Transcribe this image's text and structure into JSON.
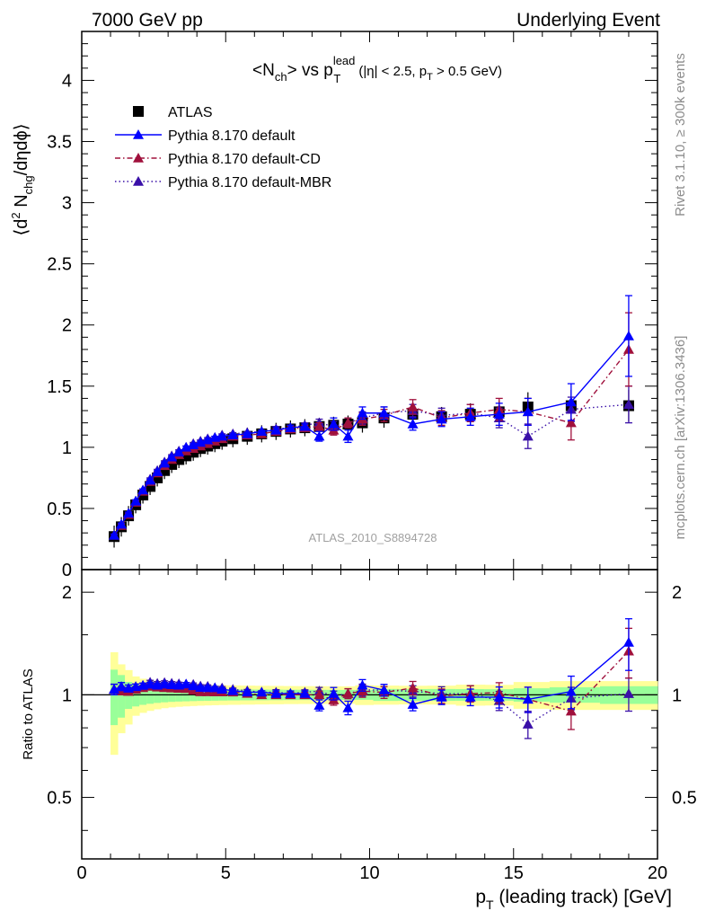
{
  "header": {
    "left": "7000 GeV pp",
    "right": "Underlying Event"
  },
  "side_labels": {
    "top": "Rivet 3.1.10, ≥ 300k events",
    "bottom": "mcplots.cern.ch [arXiv:1306.3436]"
  },
  "watermark": "ATLAS_2010_S8894728",
  "title": {
    "lead": "<N",
    "sub1": "ch",
    "mid": "> vs p",
    "sup": "lead",
    "sub2": "T",
    "cut_open": "(|η| < 2.5, p",
    "cut_sub": "T",
    "cut_close": " > 0.5 GeV)"
  },
  "ylabel": {
    "pre": "⟨d",
    "sup": "2",
    "mid": " N",
    "sub": "chg",
    "post": "/dηdϕ⟩"
  },
  "ratio_ylabel": "Ratio to ATLAS",
  "xlabel": {
    "pre": "p",
    "sub": "T",
    "post": " (leading track) [GeV]"
  },
  "legend": [
    {
      "label": "ATLAS",
      "color": "#000000",
      "marker": "square",
      "line": "none"
    },
    {
      "label": "Pythia 8.170 default",
      "color": "#0000ff",
      "marker": "triangle",
      "line": "solid"
    },
    {
      "label": "Pythia 8.170 default-CD",
      "color": "#a0103c",
      "marker": "triangle",
      "line": "dashdot"
    },
    {
      "label": "Pythia 8.170 default-MBR",
      "color": "#3a10a8",
      "marker": "triangle",
      "line": "dotted"
    }
  ],
  "chart_data": {
    "type": "scatter",
    "xlim": [
      0,
      20
    ],
    "ylim": [
      0,
      4.4
    ],
    "ratio_ylim": [
      0.33,
      2.33
    ],
    "x_ticks": [
      "0",
      "5",
      "10",
      "15",
      "20"
    ],
    "y_ticks": [
      "0",
      "0.5",
      "1",
      "1.5",
      "2",
      "2.5",
      "3",
      "3.5",
      "4"
    ],
    "ratio_ticks": [
      "0.5",
      "1",
      "2"
    ],
    "x": [
      1.125,
      1.375,
      1.625,
      1.875,
      2.125,
      2.375,
      2.625,
      2.875,
      3.125,
      3.375,
      3.625,
      3.875,
      4.125,
      4.375,
      4.625,
      4.875,
      5.25,
      5.75,
      6.25,
      6.75,
      7.25,
      7.75,
      8.25,
      8.75,
      9.25,
      9.75,
      10.5,
      11.5,
      12.5,
      13.5,
      14.5,
      15.5,
      17.0,
      19.0
    ],
    "series": [
      {
        "name": "ATLAS",
        "values": [
          0.27,
          0.35,
          0.44,
          0.53,
          0.61,
          0.68,
          0.75,
          0.81,
          0.86,
          0.9,
          0.93,
          0.96,
          0.99,
          1.01,
          1.03,
          1.05,
          1.07,
          1.09,
          1.11,
          1.13,
          1.15,
          1.16,
          1.17,
          1.18,
          1.19,
          1.2,
          1.24,
          1.27,
          1.25,
          1.27,
          1.29,
          1.33,
          1.34,
          1.34
        ],
        "band_stat": [
          0.05,
          0.05,
          0.04,
          0.04,
          0.04,
          0.04,
          0.04,
          0.04,
          0.04,
          0.04,
          0.04,
          0.04,
          0.04,
          0.04,
          0.04,
          0.04,
          0.04,
          0.04,
          0.04,
          0.04,
          0.04,
          0.04,
          0.04,
          0.04,
          0.04,
          0.04,
          0.05,
          0.05,
          0.05,
          0.05,
          0.05,
          0.06,
          0.07,
          0.08
        ],
        "band_total": [
          0.09,
          0.08,
          0.08,
          0.07,
          0.07,
          0.07,
          0.07,
          0.07,
          0.07,
          0.07,
          0.07,
          0.07,
          0.07,
          0.07,
          0.07,
          0.07,
          0.07,
          0.07,
          0.07,
          0.07,
          0.07,
          0.07,
          0.07,
          0.07,
          0.07,
          0.08,
          0.08,
          0.08,
          0.08,
          0.09,
          0.09,
          0.12,
          0.13,
          0.13
        ]
      },
      {
        "name": "Pythia 8.170 default",
        "values": [
          0.28,
          0.37,
          0.46,
          0.56,
          0.65,
          0.73,
          0.8,
          0.87,
          0.92,
          0.96,
          1.0,
          1.02,
          1.04,
          1.06,
          1.08,
          1.09,
          1.1,
          1.11,
          1.13,
          1.14,
          1.16,
          1.17,
          1.09,
          1.19,
          1.09,
          1.28,
          1.28,
          1.19,
          1.23,
          1.25,
          1.27,
          1.29,
          1.37,
          1.91
        ],
        "errors": [
          0.01,
          0.01,
          0.01,
          0.01,
          0.01,
          0.01,
          0.01,
          0.01,
          0.01,
          0.01,
          0.01,
          0.01,
          0.01,
          0.01,
          0.01,
          0.01,
          0.01,
          0.01,
          0.01,
          0.02,
          0.02,
          0.02,
          0.04,
          0.05,
          0.05,
          0.05,
          0.05,
          0.05,
          0.06,
          0.07,
          0.09,
          0.11,
          0.15,
          0.33
        ]
      },
      {
        "name": "Pythia 8.170 default-CD",
        "values": [
          0.28,
          0.36,
          0.45,
          0.55,
          0.64,
          0.72,
          0.79,
          0.85,
          0.9,
          0.94,
          0.97,
          0.99,
          1.01,
          1.03,
          1.05,
          1.07,
          1.09,
          1.1,
          1.11,
          1.13,
          1.15,
          1.16,
          1.17,
          1.14,
          1.2,
          1.23,
          1.26,
          1.33,
          1.24,
          1.28,
          1.31,
          1.29,
          1.2,
          1.8
        ],
        "errors": [
          0.01,
          0.01,
          0.01,
          0.01,
          0.01,
          0.01,
          0.01,
          0.01,
          0.01,
          0.01,
          0.01,
          0.01,
          0.01,
          0.01,
          0.01,
          0.01,
          0.01,
          0.01,
          0.01,
          0.02,
          0.02,
          0.02,
          0.03,
          0.04,
          0.04,
          0.05,
          0.05,
          0.06,
          0.06,
          0.07,
          0.09,
          0.11,
          0.14,
          0.3
        ]
      },
      {
        "name": "Pythia 8.170 default-MBR",
        "values": [
          0.28,
          0.37,
          0.46,
          0.56,
          0.65,
          0.74,
          0.81,
          0.88,
          0.93,
          0.97,
          1.0,
          1.03,
          1.05,
          1.07,
          1.08,
          1.1,
          1.11,
          1.12,
          1.13,
          1.15,
          1.16,
          1.18,
          1.2,
          1.17,
          1.2,
          1.24,
          1.28,
          1.3,
          1.26,
          1.28,
          1.24,
          1.09,
          1.31,
          1.35
        ],
        "errors": [
          0.01,
          0.01,
          0.01,
          0.01,
          0.01,
          0.01,
          0.01,
          0.01,
          0.01,
          0.01,
          0.01,
          0.01,
          0.01,
          0.01,
          0.01,
          0.01,
          0.01,
          0.01,
          0.01,
          0.02,
          0.02,
          0.02,
          0.03,
          0.04,
          0.04,
          0.05,
          0.05,
          0.05,
          0.06,
          0.07,
          0.08,
          0.1,
          0.1,
          0.15
        ]
      }
    ],
    "bands": {
      "stat_color": "#99ff99",
      "total_color": "#ffff99"
    },
    "log_scale_ratio": true
  }
}
